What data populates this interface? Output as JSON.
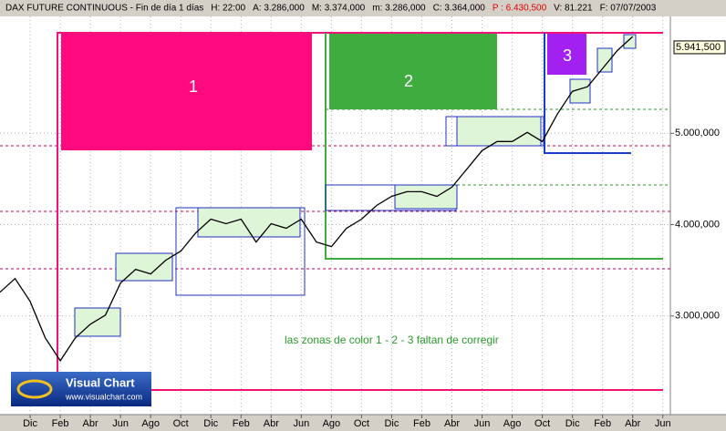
{
  "chart_data": {
    "type": "line",
    "header": [
      {
        "text": "DAX FUTURE CONTINUOUS - Fin de día 1 días",
        "color": "#000000"
      },
      {
        "text": "H: 22:00",
        "color": "#000000"
      },
      {
        "text": "A: 3.286,000",
        "color": "#000000"
      },
      {
        "text": "M: 3.374,000",
        "color": "#000000"
      },
      {
        "text": "m: 3.286,000",
        "color": "#000000"
      },
      {
        "text": "C: 3.364,000",
        "color": "#000000"
      },
      {
        "text": "P : 6.430,500",
        "color": "#e00000"
      },
      {
        "text": "V: 81.221",
        "color": "#000000"
      },
      {
        "text": "F: 07/07/2003",
        "color": "#000000"
      }
    ],
    "x": [
      0,
      1,
      2,
      3,
      4,
      5,
      6,
      7,
      8,
      9,
      10,
      11,
      12,
      13,
      14,
      15,
      16,
      17,
      18,
      19,
      20,
      21,
      22,
      23,
      24,
      25,
      26,
      27,
      28,
      29,
      30,
      31,
      32,
      33,
      34,
      35,
      36,
      37,
      38,
      39,
      40,
      41,
      42
    ],
    "values": [
      3260,
      3410,
      3160,
      2760,
      2510,
      2760,
      2910,
      3010,
      3360,
      3510,
      3460,
      3610,
      3710,
      3910,
      4060,
      4010,
      4060,
      3810,
      4010,
      3960,
      4060,
      3810,
      3760,
      3960,
      4060,
      4210,
      4310,
      4360,
      4360,
      4310,
      4410,
      4610,
      4810,
      4910,
      4910,
      5010,
      4910,
      5210,
      5460,
      5510,
      5710,
      5910,
      6060
    ],
    "color": "#000000",
    "xlim": [
      0,
      44.5
    ],
    "xticks": [
      {
        "value": 2,
        "label": "Dic"
      },
      {
        "value": 4,
        "label": "Feb"
      },
      {
        "value": 6,
        "label": "Abr"
      },
      {
        "value": 8,
        "label": "Jun"
      },
      {
        "value": 10,
        "label": "Ago"
      },
      {
        "value": 12,
        "label": "Oct"
      },
      {
        "value": 14,
        "label": "Dic"
      },
      {
        "value": 16,
        "label": "Feb"
      },
      {
        "value": 18,
        "label": "Abr"
      },
      {
        "value": 20,
        "label": "Jun"
      },
      {
        "value": 22,
        "label": "Ago"
      },
      {
        "value": 24,
        "label": "Oct"
      },
      {
        "value": 26,
        "label": "Dic"
      },
      {
        "value": 28,
        "label": "Feb"
      },
      {
        "value": 30,
        "label": "Abr"
      },
      {
        "value": 32,
        "label": "Jun"
      },
      {
        "value": 34,
        "label": "Ago"
      },
      {
        "value": 36,
        "label": "Oct"
      },
      {
        "value": 38,
        "label": "Dic"
      },
      {
        "value": 40,
        "label": "Feb"
      },
      {
        "value": 42,
        "label": "Abr"
      },
      {
        "value": 44,
        "label": "Jun"
      }
    ],
    "ylim": [
      1920,
      6280
    ],
    "yticks": [
      {
        "value": 3000,
        "label": "3.000,000"
      },
      {
        "value": 4000,
        "label": "4.000,000"
      },
      {
        "value": 5000,
        "label": "5.000,000"
      }
    ],
    "last_price": {
      "value": 5941.5,
      "label": "5.941,500"
    },
    "zone_labels": [
      "1",
      "2",
      "3"
    ],
    "annotation": "las zonas de color  1 - 2 - 3    faltan de corregir",
    "logo": {
      "name": "Visual Chart",
      "url": "www.visualchart.com"
    }
  }
}
